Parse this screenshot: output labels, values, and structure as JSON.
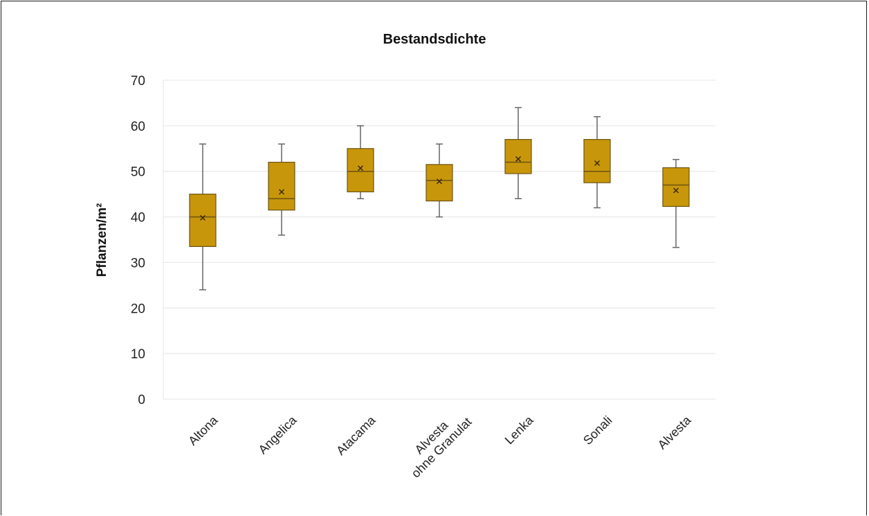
{
  "chart_data": {
    "type": "box",
    "title": "Bestandsdichte",
    "xlabel": "",
    "ylabel": "Pflanzen/m²",
    "ylim": [
      0,
      70
    ],
    "yticks": [
      0,
      10,
      20,
      30,
      40,
      50,
      60,
      70
    ],
    "grid": true,
    "categories": [
      [
        "Altona"
      ],
      [
        "Angelica"
      ],
      [
        "Atacama"
      ],
      [
        "Alvesta",
        "ohne Granulat"
      ],
      [
        "Lenka"
      ],
      [
        "Sonali"
      ],
      [
        "Alvesta"
      ]
    ],
    "boxes": [
      {
        "min": 24,
        "q1": 33.5,
        "median": 40,
        "q3": 45,
        "max": 56,
        "mean": 39.8
      },
      {
        "min": 36,
        "q1": 41.5,
        "median": 44,
        "q3": 52,
        "max": 56,
        "mean": 45.5
      },
      {
        "min": 44,
        "q1": 45.5,
        "median": 50,
        "q3": 55,
        "max": 60,
        "mean": 50.7
      },
      {
        "min": 40,
        "q1": 43.5,
        "median": 48,
        "q3": 51.5,
        "max": 56,
        "mean": 47.8
      },
      {
        "min": 44,
        "q1": 49.5,
        "median": 52,
        "q3": 57,
        "max": 64,
        "mean": 52.7
      },
      {
        "min": 42,
        "q1": 47.5,
        "median": 50,
        "q3": 57,
        "max": 62,
        "mean": 51.8
      },
      {
        "min": 33.3,
        "q1": 42.3,
        "median": 47,
        "q3": 50.8,
        "max": 52.6,
        "mean": 45.8
      }
    ],
    "colors": {
      "box_fill": "#c8960a",
      "box_stroke": "#6b5313",
      "whisker": "#666666",
      "grid": "#e4e4e4",
      "mean_marker": "#3a2a05"
    }
  }
}
